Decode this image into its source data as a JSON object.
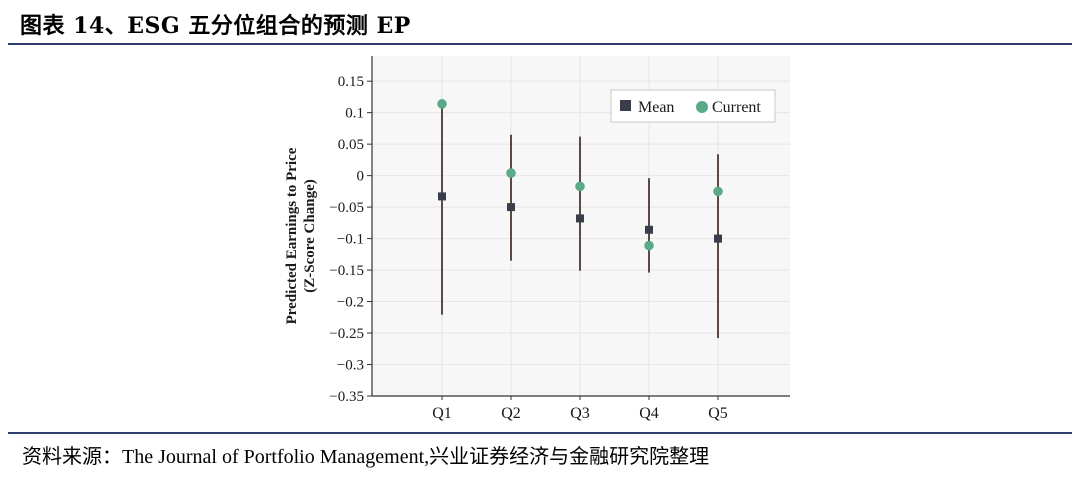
{
  "title": "图表 14、ESG 五分位组合的预测 EP",
  "source": "资料来源：The Journal of Portfolio Management,兴业证券经济与金融研究院整理",
  "chart_data": {
    "type": "scatter",
    "categories": [
      "Q1",
      "Q2",
      "Q3",
      "Q4",
      "Q5"
    ],
    "ylabel_line1": "Predicted Earnings to Price",
    "ylabel_line2": "(Z-Score Change)",
    "ylim": [
      -0.35,
      0.19
    ],
    "yticks": [
      0.15,
      0.1,
      0.05,
      0,
      -0.05,
      -0.1,
      -0.15,
      -0.2,
      -0.25,
      -0.3,
      -0.35
    ],
    "ytick_labels": [
      "0.15",
      "0.1",
      "0.05",
      "0",
      "−0.05",
      "−0.1",
      "−0.15",
      "−0.2",
      "−0.25",
      "−0.3",
      "−0.35"
    ],
    "series": [
      {
        "name": "Mean",
        "marker": "square",
        "color": "#3a3d4a",
        "values": [
          -0.033,
          -0.05,
          -0.068,
          -0.086,
          -0.1
        ],
        "range_low": [
          -0.221,
          -0.135,
          -0.151,
          -0.154,
          -0.258
        ],
        "range_high": [
          0.113,
          0.065,
          0.062,
          -0.004,
          0.034
        ]
      },
      {
        "name": "Current",
        "marker": "circle",
        "color": "#5aaa8a",
        "values": [
          0.114,
          0.004,
          -0.017,
          -0.111,
          -0.025
        ]
      }
    ],
    "whisker_color": "#5a4a42",
    "grid": true,
    "grid_color": "#e6e6e6",
    "legend_position": "top-right"
  }
}
